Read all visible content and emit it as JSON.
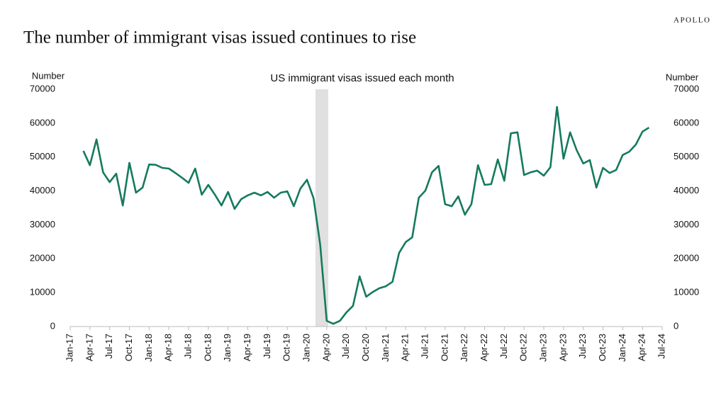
{
  "brand": "APOLLO",
  "chart_data": {
    "type": "line",
    "title": "The number of immigrant visas issued continues to rise",
    "subtitle": "US immigrant visas issued each month",
    "y_label": "Number",
    "y2_label": "Number",
    "categories": [
      "Jan-17",
      null,
      null,
      "Apr-17",
      null,
      null,
      "Jul-17",
      null,
      null,
      "Oct-17",
      null,
      null,
      "Jan-18",
      null,
      null,
      "Apr-18",
      null,
      null,
      "Jul-18",
      null,
      null,
      "Oct-18",
      null,
      null,
      "Jan-19",
      null,
      null,
      "Apr-19",
      null,
      null,
      "Jul-19",
      null,
      null,
      "Oct-19",
      null,
      null,
      "Jan-20",
      null,
      null,
      "Apr-20",
      null,
      null,
      "Jul-20",
      null,
      null,
      "Oct-20",
      null,
      null,
      "Jan-21",
      null,
      null,
      "Apr-21",
      null,
      null,
      "Jul-21",
      null,
      null,
      "Oct-21",
      null,
      null,
      "Jan-22",
      null,
      null,
      "Apr-22",
      null,
      null,
      "Jul-22",
      null,
      null,
      "Oct-22",
      null,
      null,
      "Jan-23",
      null,
      null,
      "Apr-23",
      null,
      null,
      "Jul-23",
      null,
      null,
      "Oct-23",
      null,
      null,
      "Jan-24",
      null,
      null,
      "Apr-24",
      null,
      null,
      "Jul-24"
    ],
    "series": [
      {
        "name": "US immigrant visas issued",
        "color": "#157a5e",
        "values": [
          null,
          null,
          51800,
          47600,
          55200,
          45500,
          42600,
          45100,
          35700,
          48300,
          39500,
          41000,
          47800,
          47700,
          46800,
          46600,
          45300,
          43900,
          42400,
          46600,
          38900,
          41800,
          38900,
          35700,
          39700,
          34700,
          37600,
          38700,
          39500,
          38700,
          39700,
          38000,
          39500,
          39900,
          35500,
          40700,
          43300,
          37800,
          24200,
          1700,
          800,
          1700,
          4200,
          6100,
          14800,
          8800,
          10200,
          11300,
          11900,
          13200,
          21700,
          24900,
          26300,
          38000,
          40100,
          45500,
          47400,
          36100,
          35500,
          38400,
          33000,
          36100,
          47600,
          41800,
          42000,
          49300,
          43000,
          57000,
          57300,
          44700,
          45500,
          46000,
          44500,
          47000,
          64800,
          49500,
          57300,
          52000,
          48100,
          49100,
          41000,
          46800,
          45300,
          46200,
          50600,
          51600,
          53700,
          57500,
          58700,
          null,
          null
        ]
      }
    ],
    "ylim": [
      0,
      70000
    ],
    "yticks": [
      0,
      10000,
      20000,
      30000,
      40000,
      50000,
      60000,
      70000
    ],
    "y2lim": [
      0,
      70000
    ],
    "y2ticks": [
      0,
      10000,
      20000,
      30000,
      40000,
      50000,
      60000,
      70000
    ]
  }
}
